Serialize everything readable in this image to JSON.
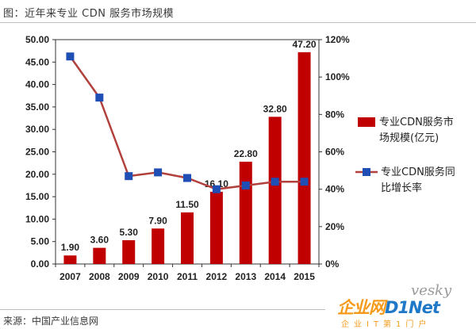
{
  "figure_title": "图：近年来专业 CDN 服务市场规模",
  "source_text": "来源：中国产业信息网",
  "watermark": {
    "vesky": "vesky",
    "logo_main": "企业网",
    "logo_dnet": "D1Net",
    "logo_sub": "企业IT第1门户"
  },
  "colors": {
    "bar": "#c00000",
    "line": "#b2413e",
    "marker": "#1f4eb4"
  },
  "chart_data": {
    "type": "bar",
    "categories": [
      "2007",
      "2008",
      "2009",
      "2010",
      "2011",
      "2012",
      "2013",
      "2014",
      "2015"
    ],
    "series": [
      {
        "name": "专业CDN服务市场规模(亿元)",
        "type": "bar",
        "axis": "left",
        "values": [
          1.9,
          3.6,
          5.3,
          7.9,
          11.5,
          16.1,
          22.8,
          32.8,
          47.2
        ],
        "labels": [
          "1.90",
          "3.60",
          "5.30",
          "7.90",
          "11.50",
          "16.10",
          "22.80",
          "32.80",
          "47.20"
        ]
      },
      {
        "name": "专业CDN服务同比增长率",
        "type": "line",
        "axis": "right",
        "values": [
          111,
          89,
          47,
          49,
          46,
          40,
          42,
          44,
          44
        ]
      }
    ],
    "ylim": [
      0,
      50
    ],
    "y2lim": [
      0,
      120
    ],
    "yticks": [
      "0.00",
      "5.00",
      "10.00",
      "15.00",
      "20.00",
      "25.00",
      "30.00",
      "35.00",
      "40.00",
      "45.00",
      "50.00"
    ],
    "y2ticks": [
      "0%",
      "20%",
      "40%",
      "60%",
      "80%",
      "100%",
      "120%"
    ],
    "legend": {
      "position": "right",
      "bar_label_lines": [
        "专业CDN服务市",
        "场规模(亿元)"
      ],
      "line_label_lines": [
        "专业CDN服务同",
        "比增长率"
      ]
    }
  }
}
